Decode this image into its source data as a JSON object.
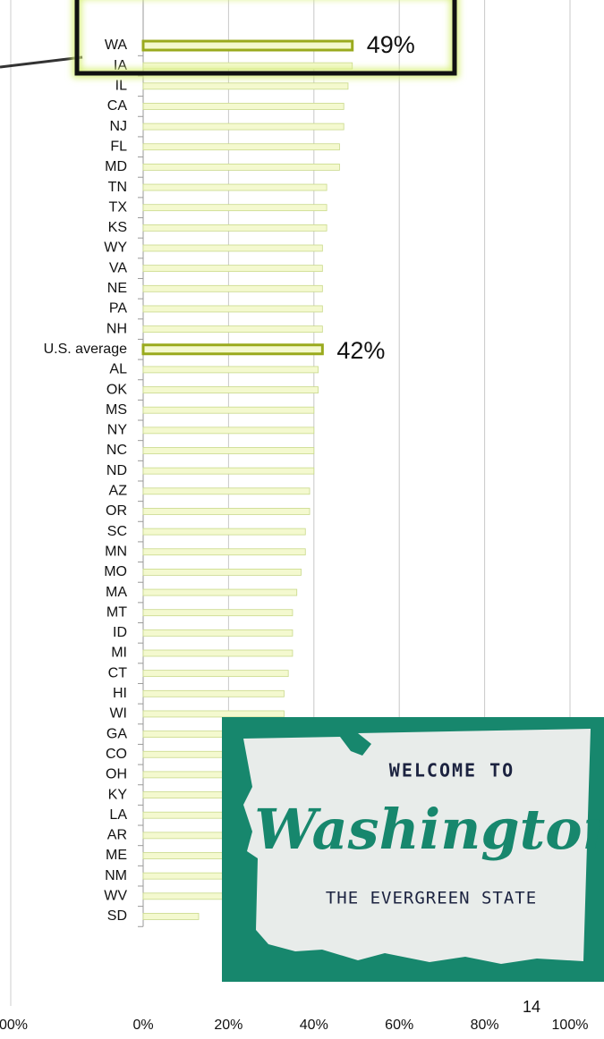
{
  "chart_data": {
    "type": "bar",
    "orientation": "horizontal",
    "categories": [
      "WA",
      "IA",
      "IL",
      "CA",
      "NJ",
      "FL",
      "MD",
      "TN",
      "TX",
      "KS",
      "WY",
      "VA",
      "NE",
      "PA",
      "NH",
      "U.S. average",
      "AL",
      "OK",
      "MS",
      "NY",
      "NC",
      "ND",
      "AZ",
      "OR",
      "SC",
      "MN",
      "MO",
      "MA",
      "MT",
      "ID",
      "MI",
      "CT",
      "HI",
      "WI",
      "GA",
      "CO",
      "OH",
      "KY",
      "LA",
      "AR",
      "ME",
      "NM",
      "WV",
      "SD"
    ],
    "values": [
      49,
      49,
      48,
      47,
      47,
      46,
      46,
      43,
      43,
      43,
      42,
      42,
      42,
      42,
      42,
      42,
      41,
      41,
      40,
      40,
      40,
      40,
      39,
      39,
      38,
      38,
      37,
      36,
      35,
      35,
      35,
      34,
      33,
      33,
      32,
      32,
      31,
      30,
      30,
      29,
      28,
      27,
      26,
      13
    ],
    "value_labels": [
      "49%",
      null,
      null,
      null,
      null,
      null,
      null,
      null,
      null,
      null,
      null,
      null,
      null,
      null,
      null,
      "42%",
      null,
      null,
      null,
      null,
      null,
      null,
      null,
      null,
      null,
      null,
      null,
      null,
      null,
      null,
      null,
      null,
      null,
      null,
      null,
      null,
      null,
      null,
      null,
      null,
      null,
      null,
      null,
      null
    ],
    "color": "#f4f9cf",
    "edge_color": "#c9d98a",
    "highlight_color": "#9aaa1e",
    "xlim": [
      0,
      100
    ],
    "xticks": [
      {
        "value": 0,
        "label": "0%"
      },
      {
        "value": 20,
        "label": "20%"
      },
      {
        "value": 40,
        "label": "40%"
      },
      {
        "value": 60,
        "label": "60%"
      },
      {
        "value": 80,
        "label": "80%"
      },
      {
        "value": 100,
        "label": "100%"
      }
    ],
    "grid": true
  },
  "left_axis_fragment": "00%",
  "page_number": "14",
  "sign": {
    "line1": "WELCOME TO",
    "line2": "Washington",
    "line3": "THE EVERGREEN STATE"
  }
}
